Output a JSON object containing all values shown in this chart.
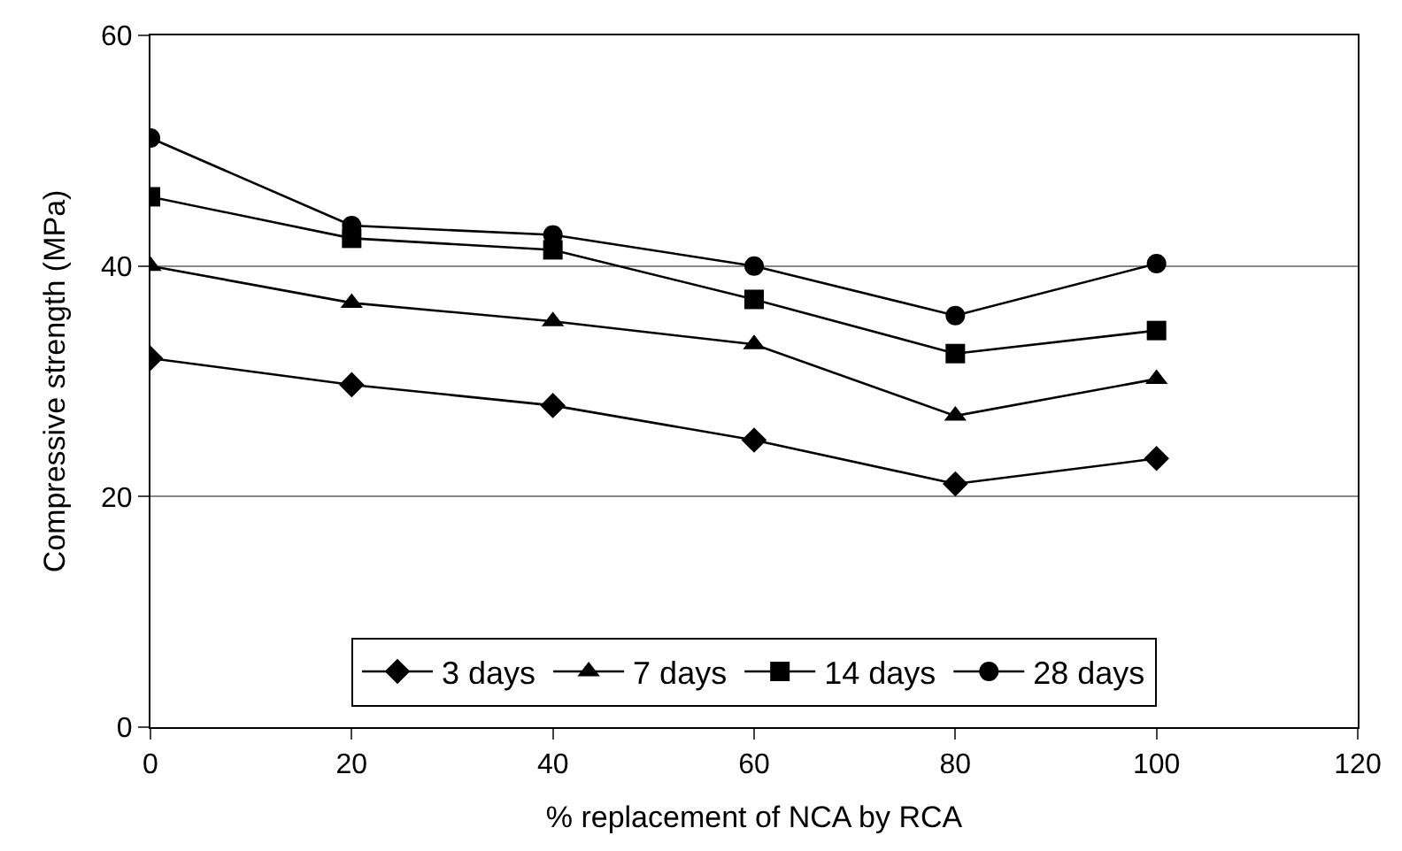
{
  "chart_data": {
    "type": "line",
    "xlabel": "% replacement of NCA by RCA",
    "ylabel": "Compressive strength (MPa)",
    "x": [
      0,
      20,
      40,
      60,
      80,
      100
    ],
    "series": [
      {
        "name": "3 days",
        "color": "#000000",
        "marker": "diamond",
        "values": [
          32,
          29.7,
          27.9,
          24.9,
          21.1,
          23.3
        ]
      },
      {
        "name": "7 days",
        "color": "#000000",
        "marker": "triangle",
        "values": [
          40,
          36.8,
          35.2,
          33.2,
          27,
          30.2
        ]
      },
      {
        "name": "14 days",
        "color": "#000000",
        "marker": "square",
        "values": [
          46,
          42.4,
          41.4,
          37.1,
          32.4,
          34.4
        ]
      },
      {
        "name": "28 days",
        "color": "#000000",
        "marker": "circle",
        "values": [
          51.1,
          43.5,
          42.7,
          40,
          35.7,
          40.2
        ]
      }
    ],
    "xlim": [
      0,
      120
    ],
    "xticks": [
      0,
      20,
      40,
      60,
      80,
      100,
      120
    ],
    "ylim": [
      0,
      60
    ],
    "yticks": [
      0,
      20,
      40,
      60
    ],
    "grid": "y",
    "legend": "bottom",
    "line_style": "solid"
  }
}
